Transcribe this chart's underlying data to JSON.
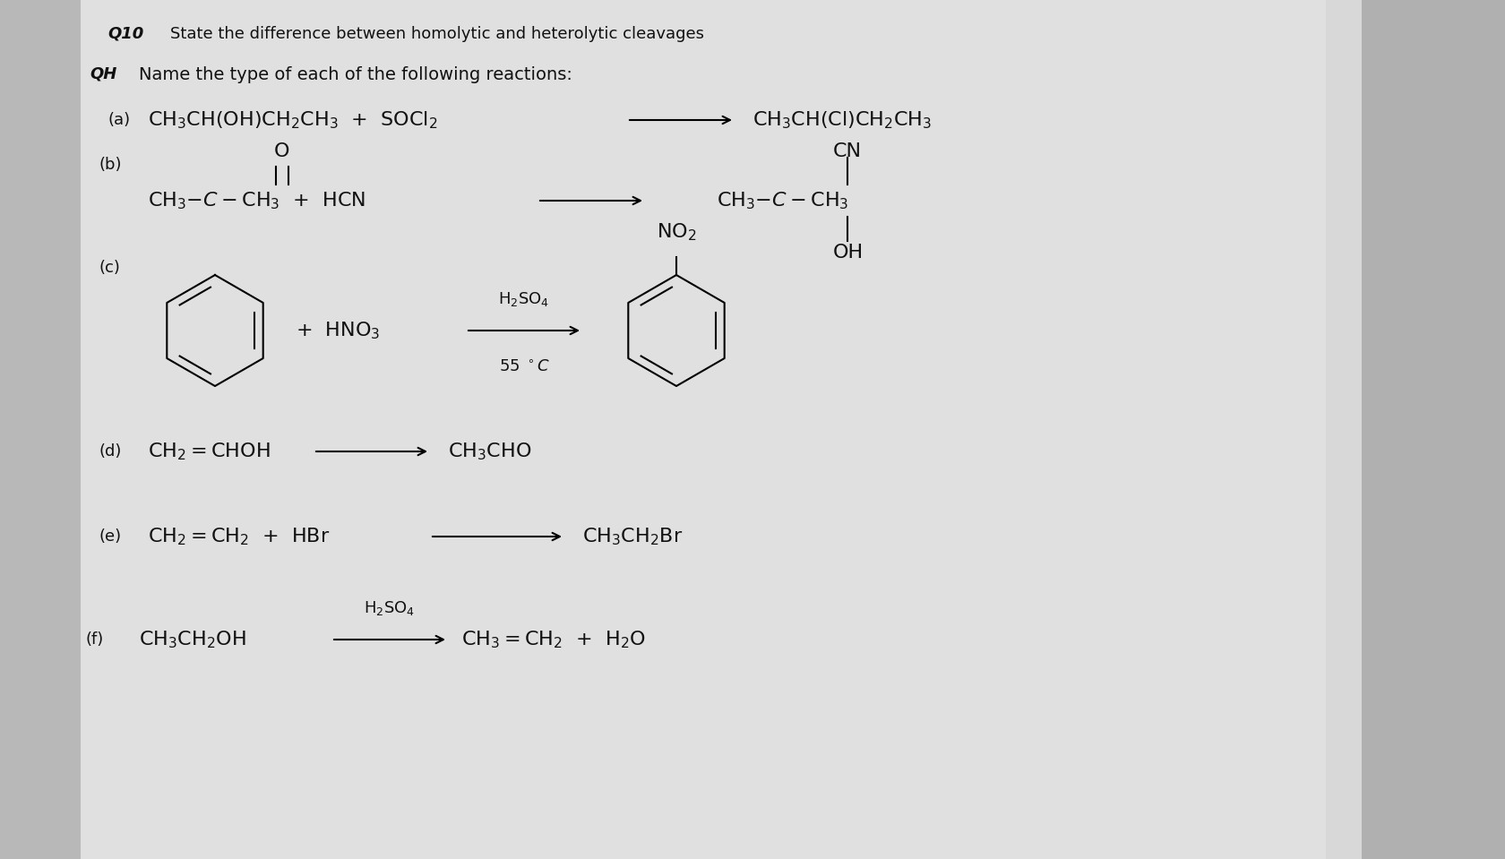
{
  "background_color": "#d8d8d8",
  "page_color": "#e8e8e8",
  "text_color": "#111111",
  "title": "State the difference between homolytic and heterolytic cleavages",
  "q_label": "Q10",
  "qh_label": "QH",
  "header": "Name the type of each of the following reactions:",
  "font_size": 16,
  "font_size_small": 13,
  "font_size_sub": 11
}
